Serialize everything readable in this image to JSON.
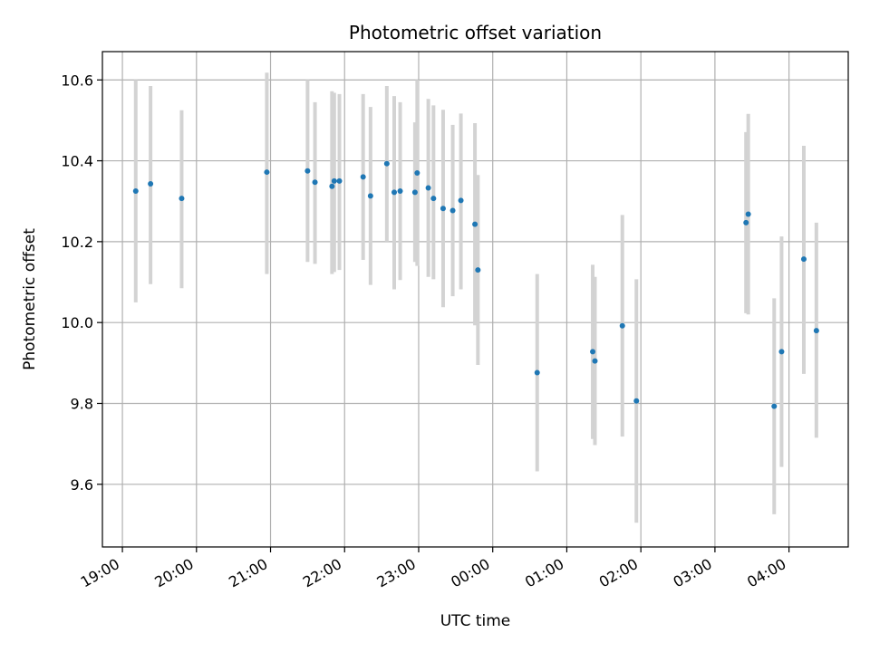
{
  "chart_data": {
    "type": "scatter",
    "title": "Photometric offset variation",
    "xlabel": "UTC time",
    "ylabel": "Photometric offset",
    "x_tick_labels": [
      "19:00",
      "20:00",
      "21:00",
      "22:00",
      "23:00",
      "00:00",
      "01:00",
      "02:00",
      "03:00",
      "04:00"
    ],
    "y_tick_labels": [
      "9.6",
      "9.8",
      "10.0",
      "10.2",
      "10.4",
      "10.6"
    ],
    "x_ticks_hours": [
      0,
      1,
      2,
      3,
      4,
      5,
      6,
      7,
      8,
      9
    ],
    "y_ticks": [
      9.6,
      9.8,
      10.0,
      10.2,
      10.4,
      10.6
    ],
    "xlim_hours": [
      -0.27,
      9.8
    ],
    "ylim": [
      9.445,
      10.67
    ],
    "grid": true,
    "colors": {
      "point": "#1f77b4",
      "errorbar": "#d3d3d3",
      "grid": "#b0b0b0"
    },
    "points": [
      {
        "t": 0.18,
        "y": 10.325,
        "lo": 10.05,
        "hi": 10.6
      },
      {
        "t": 0.38,
        "y": 10.343,
        "lo": 10.095,
        "hi": 10.585
      },
      {
        "t": 0.8,
        "y": 10.307,
        "lo": 10.085,
        "hi": 10.525
      },
      {
        "t": 1.95,
        "y": 10.372,
        "lo": 10.12,
        "hi": 10.618
      },
      {
        "t": 2.5,
        "y": 10.375,
        "lo": 10.15,
        "hi": 10.6
      },
      {
        "t": 2.6,
        "y": 10.347,
        "lo": 10.145,
        "hi": 10.545
      },
      {
        "t": 2.83,
        "y": 10.337,
        "lo": 10.12,
        "hi": 10.572
      },
      {
        "t": 2.86,
        "y": 10.35,
        "lo": 10.125,
        "hi": 10.568
      },
      {
        "t": 2.93,
        "y": 10.35,
        "lo": 10.13,
        "hi": 10.565
      },
      {
        "t": 3.25,
        "y": 10.36,
        "lo": 10.155,
        "hi": 10.565
      },
      {
        "t": 3.35,
        "y": 10.313,
        "lo": 10.093,
        "hi": 10.533
      },
      {
        "t": 3.57,
        "y": 10.393,
        "lo": 10.2,
        "hi": 10.585
      },
      {
        "t": 3.67,
        "y": 10.322,
        "lo": 10.082,
        "hi": 10.56
      },
      {
        "t": 3.75,
        "y": 10.325,
        "lo": 10.105,
        "hi": 10.545
      },
      {
        "t": 3.95,
        "y": 10.322,
        "lo": 10.15,
        "hi": 10.495
      },
      {
        "t": 3.98,
        "y": 10.37,
        "lo": 10.14,
        "hi": 10.6
      },
      {
        "t": 4.13,
        "y": 10.333,
        "lo": 10.113,
        "hi": 10.553
      },
      {
        "t": 4.2,
        "y": 10.307,
        "lo": 10.107,
        "hi": 10.537
      },
      {
        "t": 4.33,
        "y": 10.282,
        "lo": 10.038,
        "hi": 10.526
      },
      {
        "t": 4.46,
        "y": 10.277,
        "lo": 10.065,
        "hi": 10.489
      },
      {
        "t": 4.57,
        "y": 10.302,
        "lo": 10.082,
        "hi": 10.517
      },
      {
        "t": 4.76,
        "y": 10.243,
        "lo": 9.993,
        "hi": 10.493
      },
      {
        "t": 4.8,
        "y": 10.13,
        "lo": 9.895,
        "hi": 10.365
      },
      {
        "t": 5.6,
        "y": 9.876,
        "lo": 9.632,
        "hi": 10.12
      },
      {
        "t": 6.35,
        "y": 9.928,
        "lo": 9.712,
        "hi": 10.143
      },
      {
        "t": 6.38,
        "y": 9.905,
        "lo": 9.697,
        "hi": 10.113
      },
      {
        "t": 6.75,
        "y": 9.992,
        "lo": 9.718,
        "hi": 10.266
      },
      {
        "t": 6.94,
        "y": 9.806,
        "lo": 9.505,
        "hi": 10.107
      },
      {
        "t": 8.42,
        "y": 10.247,
        "lo": 10.023,
        "hi": 10.471
      },
      {
        "t": 8.45,
        "y": 10.268,
        "lo": 10.02,
        "hi": 10.516
      },
      {
        "t": 8.8,
        "y": 9.793,
        "lo": 9.526,
        "hi": 10.06
      },
      {
        "t": 8.9,
        "y": 9.928,
        "lo": 9.643,
        "hi": 10.213
      },
      {
        "t": 9.2,
        "y": 10.157,
        "lo": 9.873,
        "hi": 10.437
      },
      {
        "t": 9.37,
        "y": 9.98,
        "lo": 9.715,
        "hi": 10.247
      }
    ]
  }
}
